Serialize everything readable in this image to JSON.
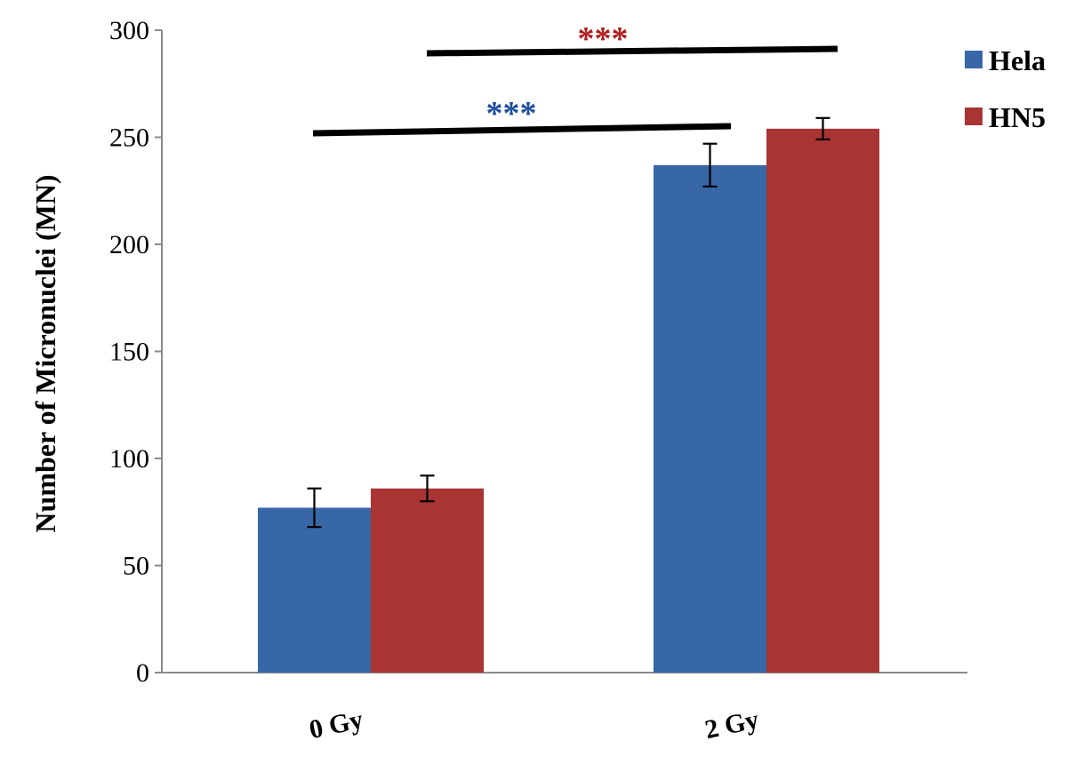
{
  "chart_data": {
    "type": "bar",
    "categories": [
      "0 Gy",
      "2 Gy"
    ],
    "series": [
      {
        "name": "Hela",
        "color": "#3767A7",
        "values": [
          77,
          237
        ],
        "errors": [
          9,
          10
        ]
      },
      {
        "name": "HN5",
        "color": "#A83434",
        "values": [
          86,
          254
        ],
        "errors": [
          6,
          5
        ]
      }
    ],
    "ylabel": "Number of Micronuclei (MN)",
    "xlabel": "",
    "ylim": [
      0,
      300
    ],
    "yticks": [
      0,
      50,
      100,
      150,
      200,
      250,
      300
    ],
    "grid": false,
    "legend_position": "top-right",
    "significance": [
      {
        "label": "***",
        "color": "#1F4E9C",
        "from": "0 Gy Hela",
        "to": "2 Gy Hela"
      },
      {
        "label": "***",
        "color": "#B01E1E",
        "from": "0 Gy HN5",
        "to": "2 Gy HN5"
      }
    ]
  }
}
